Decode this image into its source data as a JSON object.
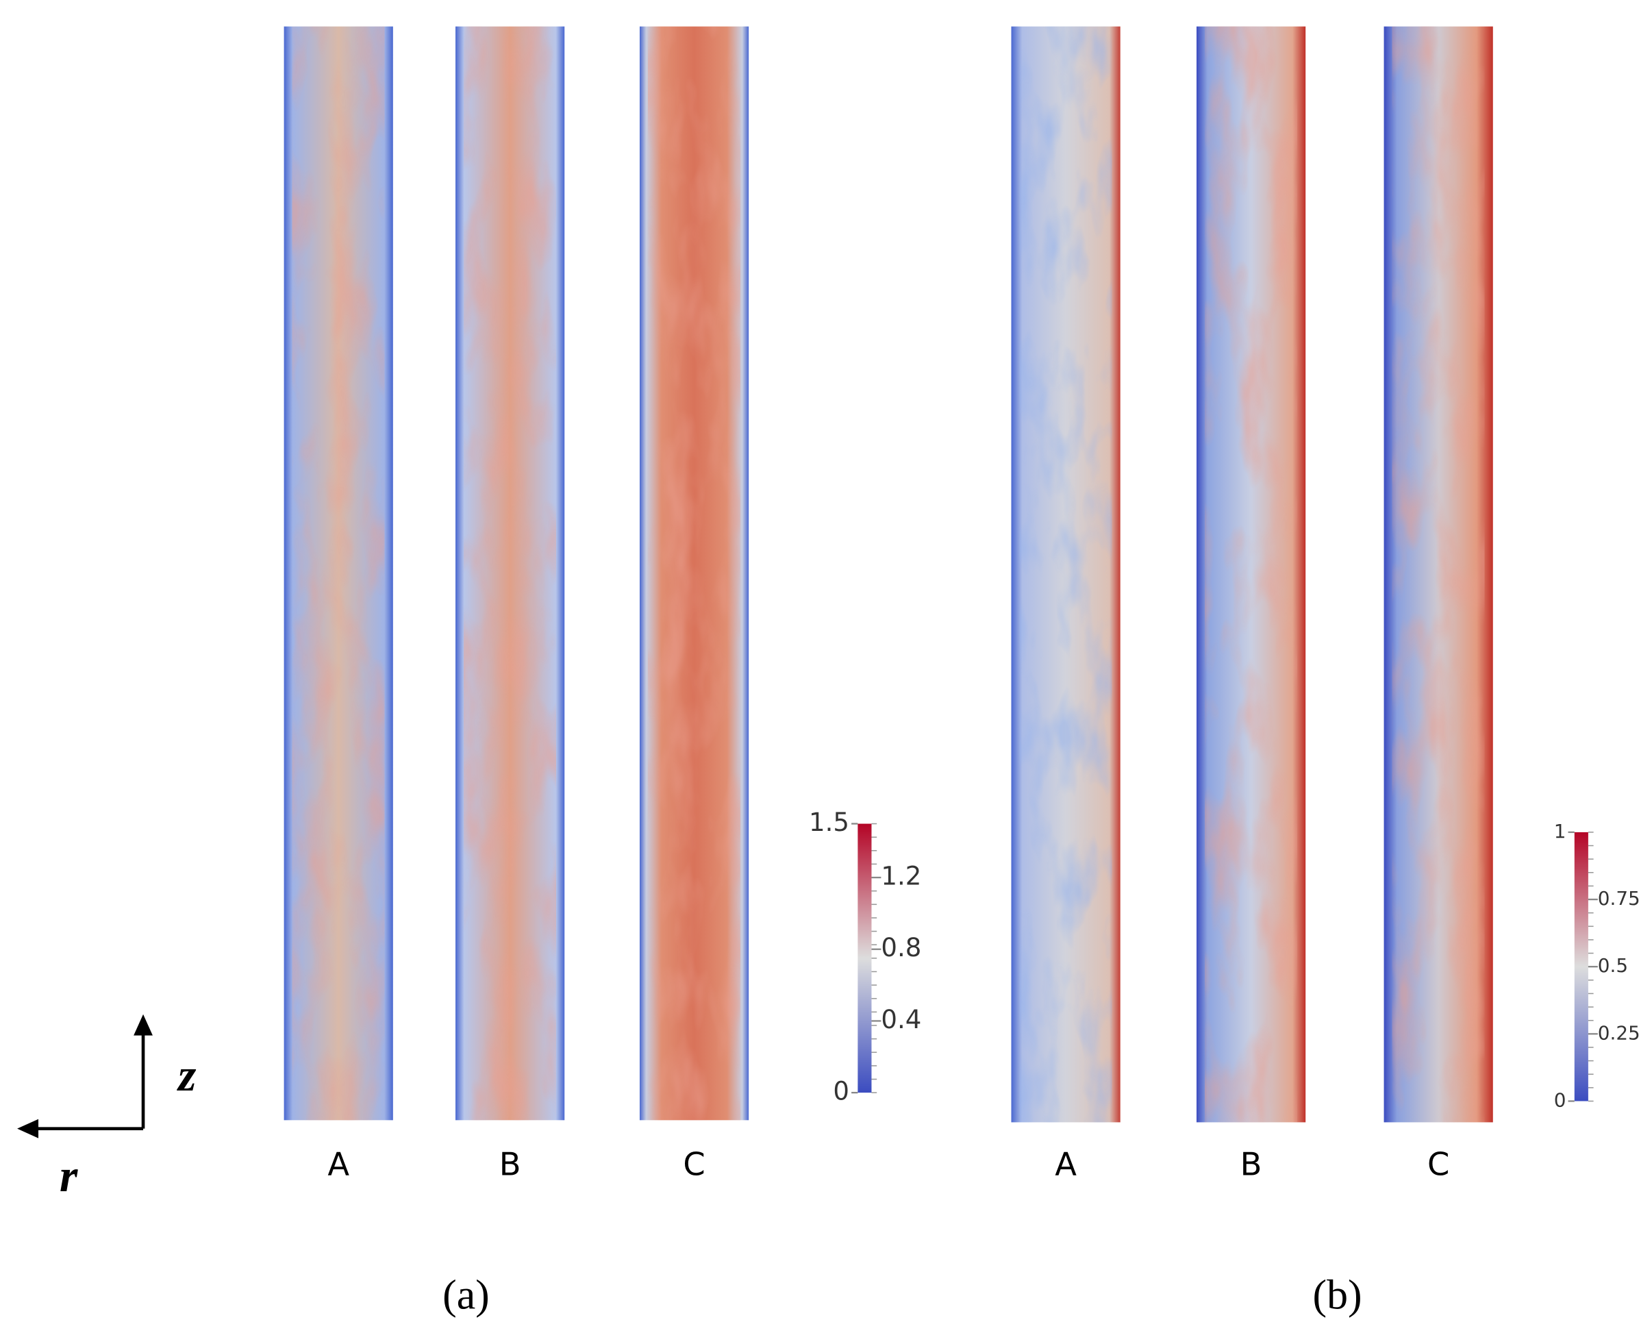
{
  "axes": {
    "vertical": "z",
    "horizontal": "r"
  },
  "panels": [
    {
      "label": "(a)",
      "strip_labels": [
        "A",
        "B",
        "C"
      ],
      "colorbar": {
        "ticks": [
          0,
          0.4,
          0.8,
          1.2,
          1.5
        ]
      }
    },
    {
      "label": "(b)",
      "strip_labels": [
        "A",
        "B",
        "C"
      ],
      "colorbar": {
        "ticks": [
          0,
          0.25,
          0.5,
          0.75,
          1
        ]
      }
    }
  ]
}
